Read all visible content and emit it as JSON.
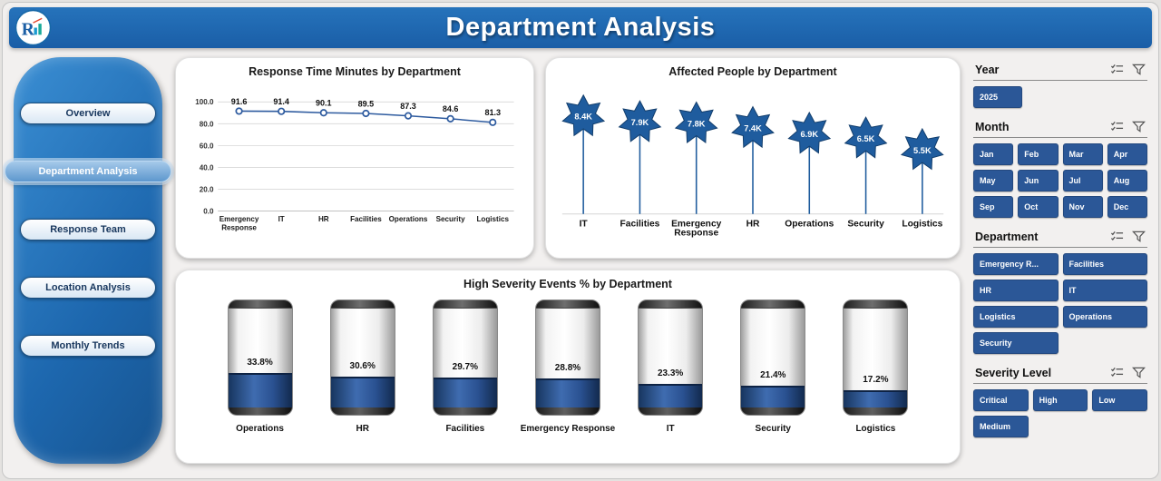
{
  "header": {
    "title": "Department Analysis"
  },
  "sidebar": {
    "items": [
      {
        "label": "Overview",
        "active": false
      },
      {
        "label": "Department Analysis",
        "active": true
      },
      {
        "label": "Response Team",
        "active": false
      },
      {
        "label": "Location Analysis",
        "active": false
      },
      {
        "label": "Monthly Trends",
        "active": false
      }
    ]
  },
  "chart_data": [
    {
      "type": "line",
      "title": "Response Time Minutes by Department",
      "categories": [
        "Emergency Response",
        "IT",
        "HR",
        "Facilities",
        "Operations",
        "Security",
        "Logistics"
      ],
      "values": [
        91.6,
        91.4,
        90.1,
        89.5,
        87.3,
        84.6,
        81.3
      ],
      "ylabel": "",
      "xlabel": "",
      "ylim": [
        0,
        100
      ],
      "yticks": [
        "100.0",
        "80.0",
        "60.0",
        "40.0",
        "20.0",
        "0.0"
      ],
      "grid": true,
      "legend": false
    },
    {
      "type": "lollipop-star",
      "title": "Affected People by Department",
      "categories": [
        "IT",
        "Facilities",
        "Emergency Response",
        "HR",
        "Operations",
        "Security",
        "Logistics"
      ],
      "values": [
        8400,
        7900,
        7800,
        7400,
        6900,
        6500,
        5500
      ],
      "labels": [
        "8.4K",
        "7.9K",
        "7.8K",
        "7.4K",
        "6.9K",
        "6.5K",
        "5.5K"
      ],
      "legend": false
    },
    {
      "type": "cylinder-gauge",
      "title": "High Severity Events % by Department",
      "categories": [
        "Operations",
        "HR",
        "Facilities",
        "Emergency Response",
        "IT",
        "Security",
        "Logistics"
      ],
      "values": [
        33.8,
        30.6,
        29.7,
        28.8,
        23.3,
        21.4,
        17.2
      ],
      "labels": [
        "33.8%",
        "30.6%",
        "29.7%",
        "28.8%",
        "23.3%",
        "21.4%",
        "17.2%"
      ],
      "legend": false
    }
  ],
  "filters": {
    "sections": [
      {
        "id": "year",
        "title": "Year",
        "icons": [
          "select-all-icon",
          "filter-icon"
        ],
        "options": [
          "2025"
        ]
      },
      {
        "id": "month",
        "title": "Month",
        "icons": [
          "select-all-icon",
          "filter-icon"
        ],
        "options": [
          "Jan",
          "Feb",
          "Mar",
          "Apr",
          "May",
          "Jun",
          "Jul",
          "Aug",
          "Sep",
          "Oct",
          "Nov",
          "Dec"
        ]
      },
      {
        "id": "department",
        "title": "Department",
        "icons": [
          "select-all-icon",
          "filter-icon"
        ],
        "options": [
          "Emergency R...",
          "Facilities",
          "HR",
          "IT",
          "Logistics",
          "Operations",
          "Security"
        ]
      },
      {
        "id": "severity",
        "title": "Severity Level",
        "icons": [
          "select-all-icon",
          "filter-icon"
        ],
        "options": [
          "Critical",
          "High",
          "Low",
          "Medium"
        ]
      }
    ]
  },
  "colors": {
    "header_bg": "#1e63ac",
    "accent_navy": "#2b5797",
    "line": "#2e5b9f",
    "star": "#1f5c9e",
    "star_stroke": "#123d6b",
    "cylinder_fill": "#2a5191",
    "sidebar_active": "#6fa3d8"
  }
}
